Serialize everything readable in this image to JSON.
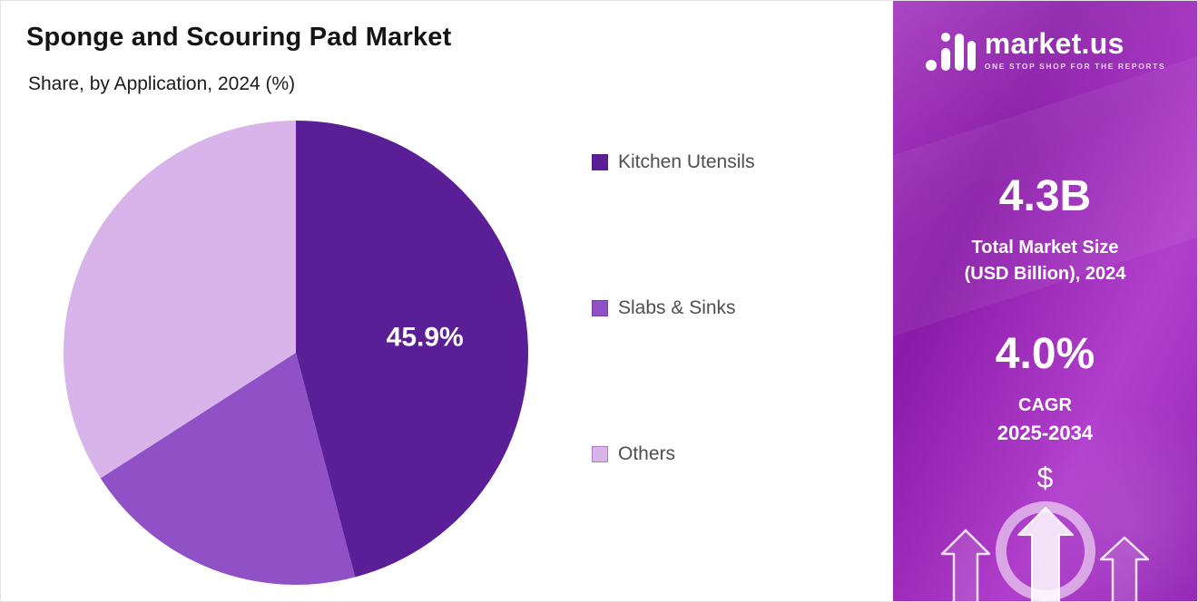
{
  "page": {
    "title": "Sponge and Scouring Pad Market",
    "subtitle": "Share, by Application, 2024 (%)"
  },
  "chart_data": {
    "type": "pie",
    "title": "Sponge and Scouring Pad Market",
    "subtitle": "Share, by Application, 2024 (%)",
    "categories": [
      "Kitchen Utensils",
      "Slabs & Sinks",
      "Others"
    ],
    "values": [
      45.9,
      20.0,
      34.1
    ],
    "colors": [
      "#5a1e96",
      "#8f51c5",
      "#d9b4ea"
    ],
    "data_labels": [
      "45.9%",
      "",
      ""
    ],
    "start_angle_deg": 0,
    "direction": "clockwise",
    "legend_position": "right"
  },
  "sidebar": {
    "brand": "market.us",
    "tagline": "ONE STOP SHOP FOR THE REPORTS",
    "stat1_value": "4.3B",
    "stat1_label1": "Total Market Size",
    "stat1_label2": "(USD Billion), 2024",
    "stat2_value": "4.0%",
    "stat2_label1": "CAGR",
    "stat2_label2": "2025-2034",
    "dollar_symbol": "$"
  }
}
